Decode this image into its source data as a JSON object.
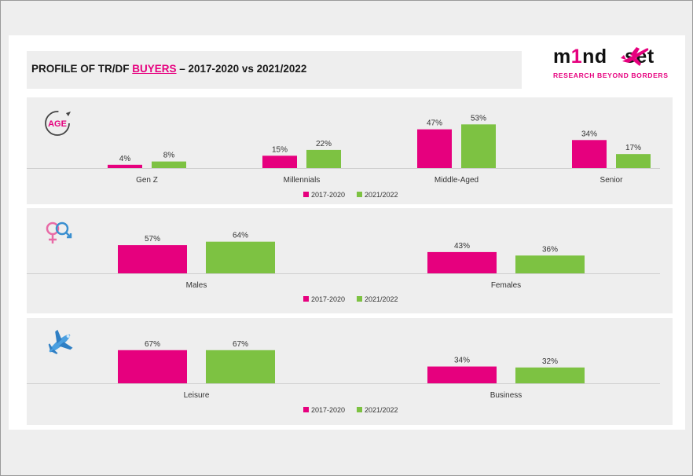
{
  "header": {
    "title_prefix": "PROFILE OF TR/DF ",
    "title_highlight": "BUYERS",
    "title_suffix": " – 2017-2020 vs 2021/2022"
  },
  "logo": {
    "wordmark_start": "m",
    "wordmark_one": "1",
    "wordmark_end": "nd   set",
    "tagline": "RESEARCH BEYOND BORDERS"
  },
  "colors": {
    "series_2017_2020": "#e6007e",
    "series_2021_2022": "#7dc242"
  },
  "chart_data": [
    {
      "type": "bar",
      "icon": "age-icon",
      "icon_label": "AGE",
      "categories": [
        "Gen Z",
        "Millennials",
        "Middle-Aged",
        "Senior"
      ],
      "series": [
        {
          "name": "2017-2020",
          "values": [
            4,
            15,
            47,
            34
          ],
          "labels": [
            "4%",
            "15%",
            "47%",
            "34%"
          ]
        },
        {
          "name": "2021/2022",
          "values": [
            8,
            22,
            53,
            17
          ],
          "labels": [
            "8%",
            "22%",
            "53%",
            "17%"
          ]
        }
      ],
      "ylim": [
        0,
        100
      ],
      "legend": "bottom"
    },
    {
      "type": "bar",
      "icon": "gender-icon",
      "categories": [
        "Males",
        "Females"
      ],
      "series": [
        {
          "name": "2017-2020",
          "values": [
            57,
            43
          ],
          "labels": [
            "57%",
            "43%"
          ]
        },
        {
          "name": "2021/2022",
          "values": [
            64,
            36
          ],
          "labels": [
            "64%",
            "36%"
          ]
        }
      ],
      "ylim": [
        0,
        100
      ],
      "legend": "bottom"
    },
    {
      "type": "bar",
      "icon": "airplane-icon",
      "categories": [
        "Leisure",
        "Business"
      ],
      "series": [
        {
          "name": "2017-2020",
          "values": [
            67,
            34
          ],
          "labels": [
            "67%",
            "34%"
          ]
        },
        {
          "name": "2021/2022",
          "values": [
            67,
            32
          ],
          "labels": [
            "67%",
            "32%"
          ]
        }
      ],
      "ylim": [
        0,
        100
      ],
      "legend": "bottom"
    }
  ]
}
